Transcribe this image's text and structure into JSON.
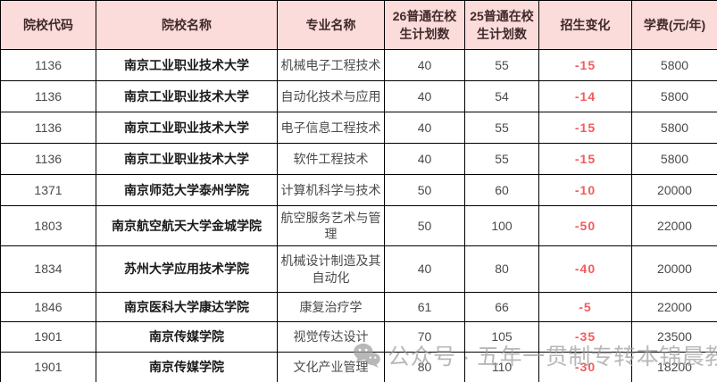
{
  "colors": {
    "header_bg": "#fbdcdb",
    "header_text": "#402a2a",
    "body_text": "#4a4a4a",
    "school_text": "#1a1a1a",
    "negative_text": "#f25c5c",
    "border": "#000000",
    "watermark": "#9e9e9e"
  },
  "table": {
    "columns": [
      {
        "key": "code",
        "label": "院校代码"
      },
      {
        "key": "school",
        "label": "院校名称"
      },
      {
        "key": "major",
        "label": "专业名称"
      },
      {
        "key": "plan26",
        "label": "26普通在校生计划数"
      },
      {
        "key": "plan25",
        "label": "25普通在校生计划数"
      },
      {
        "key": "change",
        "label": "招生变化"
      },
      {
        "key": "tuition",
        "label": "学费(元/年)"
      }
    ],
    "rows": [
      {
        "code": "1136",
        "school": "南京工业职业技术大学",
        "major": "机械电子工程技术",
        "plan26": "40",
        "plan25": "55",
        "change": "-15",
        "tuition": "5800"
      },
      {
        "code": "1136",
        "school": "南京工业职业技术大学",
        "major": "自动化技术与应用",
        "plan26": "40",
        "plan25": "54",
        "change": "-14",
        "tuition": "5800"
      },
      {
        "code": "1136",
        "school": "南京工业职业技术大学",
        "major": "电子信息工程技术",
        "plan26": "40",
        "plan25": "55",
        "change": "-15",
        "tuition": "5800"
      },
      {
        "code": "1136",
        "school": "南京工业职业技术大学",
        "major": "软件工程技术",
        "plan26": "40",
        "plan25": "55",
        "change": "-15",
        "tuition": "5800"
      },
      {
        "code": "1371",
        "school": "南京师范大学泰州学院",
        "major": "计算机科学与技术",
        "plan26": "50",
        "plan25": "60",
        "change": "-10",
        "tuition": "20000"
      },
      {
        "code": "1803",
        "school": "南京航空航天大学金城学院",
        "major": "航空服务艺术与管理",
        "plan26": "50",
        "plan25": "100",
        "change": "-50",
        "tuition": "22000"
      },
      {
        "code": "1834",
        "school": "苏州大学应用技术学院",
        "major": "机械设计制造及其自动化",
        "plan26": "40",
        "plan25": "80",
        "change": "-40",
        "tuition": "20000"
      },
      {
        "code": "1846",
        "school": "南京医科大学康达学院",
        "major": "康复治疗学",
        "plan26": "61",
        "plan25": "66",
        "change": "-5",
        "tuition": "22000"
      },
      {
        "code": "1901",
        "school": "南京传媒学院",
        "major": "视觉传达设计",
        "plan26": "70",
        "plan25": "105",
        "change": "-35",
        "tuition": "23500"
      },
      {
        "code": "1901",
        "school": "南京传媒学院",
        "major": "文化产业管理",
        "plan26": "80",
        "plan25": "110",
        "change": "-30",
        "tuition": "18200"
      }
    ]
  },
  "watermark": {
    "icon": "wechat-icon",
    "text": "公众号 · 五年一贯制专转本锦晨教育"
  }
}
